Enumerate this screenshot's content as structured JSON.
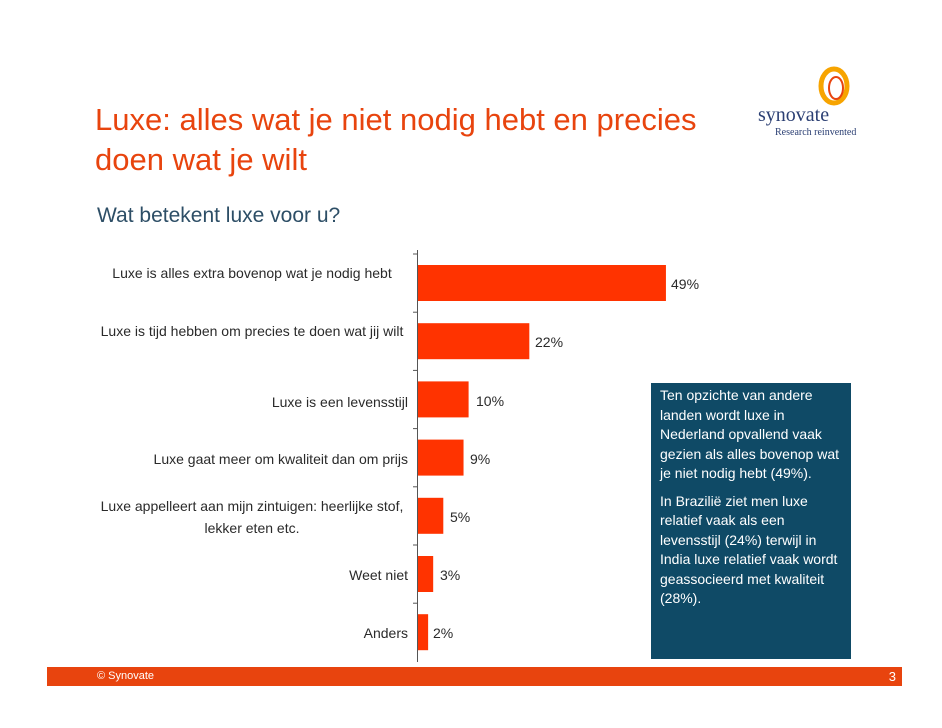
{
  "slide": {
    "title": "Luxe: alles wat je niet nodig hebt en precies doen wat je wilt",
    "subtitle": "Wat betekent luxe voor u?",
    "logo": {
      "name": "synovate",
      "tagline": "Research reinvented",
      "ring_color": "#f7a400"
    },
    "info_box": {
      "paragraph_1": "Ten opzichte van andere landen wordt luxe in Nederland opvallend vaak gezien als alles bovenop wat je niet nodig hebt (49%).",
      "paragraph_2": "In Brazilië ziet men luxe relatief vaak als een levensstijl (24%) terwijl in India luxe relatief vaak wordt geassocieerd met kwaliteit (28%)."
    },
    "footer": {
      "copyright": "© Synovate",
      "page_number": "3"
    }
  },
  "colors": {
    "accent": "#e8440e",
    "bar": "#ff3300",
    "navy": "#0f4a66",
    "brand_text": "#2b3f73"
  },
  "chart_data": {
    "type": "bar",
    "orientation": "horizontal",
    "categories": [
      "Luxe is alles extra bovenop wat je nodig hebt",
      "Luxe is tijd hebben om precies te doen wat jij wilt",
      "Luxe is een levensstijl",
      "Luxe gaat meer om kwaliteit dan om prijs",
      "Luxe appelleert aan mijn zintuigen: heerlijke stof, lekker eten etc.",
      "Weet niet",
      "Anders"
    ],
    "values": [
      49,
      22,
      10,
      9,
      5,
      3,
      2
    ],
    "value_labels": [
      "49%",
      "22%",
      "10%",
      "9%",
      "5%",
      "3%",
      "2%"
    ],
    "xlim": [
      0,
      100
    ],
    "grid": false
  }
}
